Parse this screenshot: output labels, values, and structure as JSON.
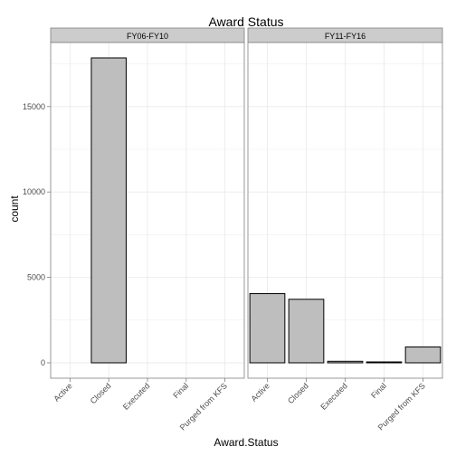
{
  "chart_data": {
    "type": "bar",
    "title": "Award Status",
    "xlabel": "Award.Status",
    "ylabel": "count",
    "categories": [
      "Active",
      "Closed",
      "Executed",
      "Final",
      "Purged from KFS"
    ],
    "panels": [
      {
        "name": "FY06-FY10",
        "values": [
          0,
          17850,
          0,
          0,
          0
        ]
      },
      {
        "name": "FY11-FY16",
        "values": [
          4050,
          3720,
          90,
          30,
          930
        ]
      }
    ],
    "yticks": [
      0,
      5000,
      10000,
      15000
    ],
    "ytick_labels": [
      "0",
      "5000",
      "10000",
      "15000"
    ],
    "ylim": [
      -900,
      18750
    ],
    "grid": true,
    "legend": "none",
    "colors": {
      "bar_fill": "#bebebe",
      "bar_stroke": "#000000",
      "strip_fill": "#cccccc",
      "grid": "#ebebeb",
      "panel_border": "#7f7f7f"
    }
  }
}
